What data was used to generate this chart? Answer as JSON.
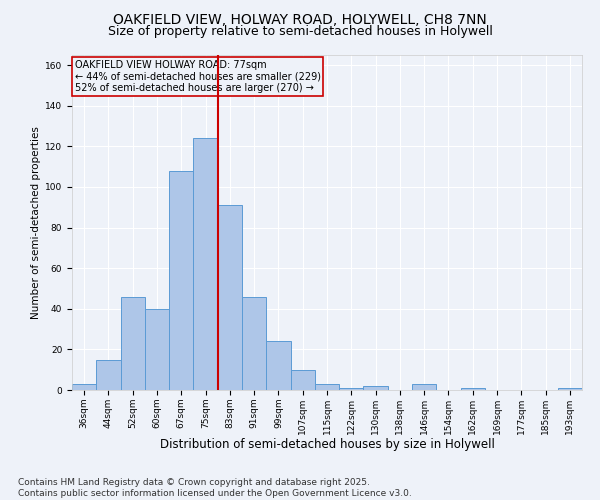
{
  "title1": "OAKFIELD VIEW, HOLWAY ROAD, HOLYWELL, CH8 7NN",
  "title2": "Size of property relative to semi-detached houses in Holywell",
  "xlabel": "Distribution of semi-detached houses by size in Holywell",
  "ylabel": "Number of semi-detached properties",
  "annotation_line1": "OAKFIELD VIEW HOLWAY ROAD: 77sqm",
  "annotation_line2": "← 44% of semi-detached houses are smaller (229)",
  "annotation_line3": "52% of semi-detached houses are larger (270) →",
  "footer": "Contains HM Land Registry data © Crown copyright and database right 2025.\nContains public sector information licensed under the Open Government Licence v3.0.",
  "categories": [
    "36sqm",
    "44sqm",
    "52sqm",
    "60sqm",
    "67sqm",
    "75sqm",
    "83sqm",
    "91sqm",
    "99sqm",
    "107sqm",
    "115sqm",
    "122sqm",
    "130sqm",
    "138sqm",
    "146sqm",
    "154sqm",
    "162sqm",
    "169sqm",
    "177sqm",
    "185sqm",
    "193sqm"
  ],
  "values": [
    3,
    15,
    46,
    40,
    108,
    124,
    91,
    46,
    24,
    10,
    3,
    1,
    2,
    0,
    3,
    0,
    1,
    0,
    0,
    0,
    1
  ],
  "bar_color": "#aec6e8",
  "bar_edge_color": "#5b9bd5",
  "vline_x": 5.5,
  "vline_color": "#cc0000",
  "ylim": [
    0,
    165
  ],
  "yticks": [
    0,
    20,
    40,
    60,
    80,
    100,
    120,
    140,
    160
  ],
  "background_color": "#eef2f9",
  "grid_color": "#ffffff",
  "annotation_box_edge": "#cc0000",
  "title1_fontsize": 10,
  "title2_fontsize": 9,
  "xlabel_fontsize": 8.5,
  "ylabel_fontsize": 7.5,
  "tick_fontsize": 6.5,
  "footer_fontsize": 6.5,
  "annotation_fontsize": 7
}
